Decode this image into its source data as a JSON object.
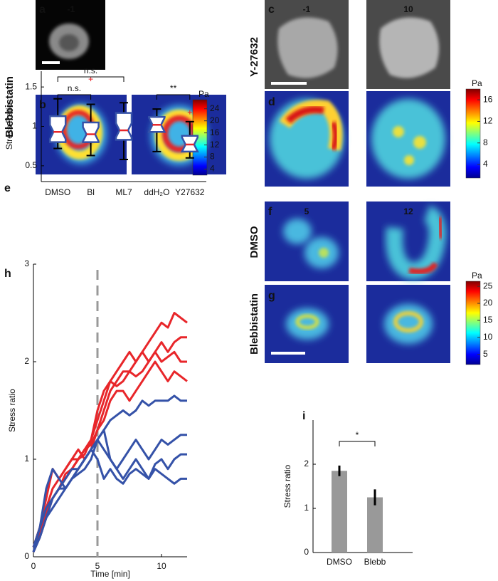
{
  "panel_labels": [
    "a",
    "b",
    "c",
    "d",
    "e",
    "f",
    "g",
    "h",
    "i"
  ],
  "image_labels": [
    "-1",
    "-1",
    "10",
    "5",
    "12"
  ],
  "row_labels": [
    "Blebbistatin",
    "Y-27632",
    "DMSO",
    "Blebbistatin"
  ],
  "colorbars": [
    {
      "unit": "Pa",
      "lim": [
        2,
        27
      ],
      "ticks": [
        24,
        20,
        16,
        12,
        8,
        4
      ]
    },
    {
      "unit": "Pa",
      "lim": [
        1.5,
        18
      ],
      "ticks": [
        16,
        12,
        8,
        4
      ]
    },
    {
      "unit": "Pa",
      "lim": [
        2,
        26.5
      ],
      "ticks": [
        25,
        20,
        15,
        10,
        5
      ]
    }
  ],
  "chart_data": [
    {
      "type": "box",
      "ylabel": "Stress Ratio",
      "categories": [
        "DMSO",
        "Bl",
        "ML7",
        "ddH₂O",
        "Y27632"
      ],
      "boxes": [
        {
          "whislo": 0.72,
          "q1": 0.8,
          "med": 0.93,
          "q3": 1.13,
          "whishi": 1.35,
          "fliers": []
        },
        {
          "whislo": 0.63,
          "q1": 0.8,
          "med": 0.9,
          "q3": 1.05,
          "whishi": 1.28,
          "fliers": [
            1.6
          ]
        },
        {
          "whislo": 0.58,
          "q1": 0.83,
          "med": 0.95,
          "q3": 1.17,
          "whishi": 1.3,
          "fliers": []
        },
        {
          "whislo": 0.68,
          "q1": 0.93,
          "med": 1.02,
          "q3": 1.12,
          "whishi": 1.22,
          "fliers": []
        },
        {
          "whislo": 0.6,
          "q1": 0.68,
          "med": 0.77,
          "q3": 0.88,
          "whishi": 1.06,
          "fliers": [
            1.18
          ]
        }
      ],
      "box_color": "#3552a8",
      "median_color": "#e8262a",
      "flier_color": "#e8262a",
      "ylim": [
        0.3,
        1.7
      ],
      "yticks": [
        0.5,
        1,
        1.5
      ],
      "annotations": [
        {
          "text": "n.s.",
          "categories": [
            "DMSO",
            "ML7"
          ]
        },
        {
          "text": "n.s.",
          "categories": [
            "DMSO",
            "Bl"
          ]
        },
        {
          "text": "**",
          "categories": [
            "ddH₂O",
            "Y27632"
          ]
        }
      ]
    },
    {
      "type": "line",
      "xlabel": "Time [min]",
      "ylabel": "Stress ratio",
      "x": [
        0,
        0.5,
        1,
        1.5,
        2,
        2.5,
        3,
        3.5,
        4,
        4.5,
        5,
        5.5,
        6,
        6.5,
        7,
        7.5,
        8,
        8.5,
        9,
        9.5,
        10,
        10.5,
        11,
        11.5,
        12
      ],
      "series": [
        {
          "color": "#e8262a",
          "values": [
            0.1,
            0.3,
            0.5,
            0.7,
            0.8,
            0.9,
            1.0,
            1.0,
            1.1,
            1.2,
            1.4,
            1.6,
            1.8,
            1.9,
            2.0,
            2.1,
            2.0,
            2.1,
            2.2,
            2.3,
            2.4,
            2.35,
            2.5,
            2.45,
            2.4
          ]
        },
        {
          "color": "#e8262a",
          "values": [
            0.1,
            0.3,
            0.6,
            0.9,
            0.8,
            0.9,
            1.0,
            1.1,
            1.0,
            1.1,
            1.3,
            1.5,
            1.7,
            1.8,
            1.9,
            1.9,
            2.0,
            2.1,
            2.0,
            2.1,
            2.2,
            2.1,
            2.2,
            2.25,
            2.25
          ]
        },
        {
          "color": "#e8262a",
          "values": [
            0.05,
            0.2,
            0.4,
            0.6,
            0.7,
            0.8,
            0.9,
            1.0,
            1.05,
            1.2,
            1.5,
            1.7,
            1.8,
            1.75,
            1.8,
            1.9,
            1.85,
            1.9,
            2.0,
            2.1,
            2.0,
            2.05,
            2.1,
            2.0,
            2.0
          ]
        },
        {
          "color": "#e8262a",
          "values": [
            0.05,
            0.25,
            0.45,
            0.6,
            0.7,
            0.85,
            0.9,
            1.0,
            1.1,
            1.15,
            1.3,
            1.4,
            1.6,
            1.7,
            1.7,
            1.6,
            1.7,
            1.8,
            1.9,
            2.0,
            1.9,
            1.8,
            1.9,
            1.85,
            1.8
          ]
        },
        {
          "color": "#3552a8",
          "values": [
            0.05,
            0.3,
            0.7,
            0.9,
            0.8,
            0.7,
            0.8,
            0.9,
            1.0,
            1.1,
            1.2,
            1.3,
            1.4,
            1.45,
            1.5,
            1.45,
            1.5,
            1.6,
            1.55,
            1.6,
            1.6,
            1.6,
            1.65,
            1.6,
            1.6
          ]
        },
        {
          "color": "#3552a8",
          "values": [
            0.1,
            0.3,
            0.5,
            0.6,
            0.7,
            0.8,
            0.9,
            0.9,
            1.0,
            1.1,
            1.2,
            1.1,
            1.0,
            0.9,
            1.0,
            1.1,
            1.2,
            1.1,
            1.0,
            1.1,
            1.2,
            1.15,
            1.2,
            1.25,
            1.25
          ]
        },
        {
          "color": "#3552a8",
          "values": [
            0.05,
            0.2,
            0.4,
            0.5,
            0.6,
            0.7,
            0.8,
            0.85,
            0.9,
            1.0,
            1.2,
            1.3,
            1.0,
            0.9,
            0.8,
            0.9,
            1.0,
            0.9,
            0.8,
            0.95,
            1.0,
            0.9,
            1.0,
            1.05,
            1.05
          ]
        },
        {
          "color": "#3552a8",
          "values": [
            0.05,
            0.2,
            0.4,
            0.6,
            0.7,
            0.7,
            0.8,
            0.9,
            1.0,
            1.1,
            1.0,
            0.8,
            0.9,
            0.8,
            0.75,
            0.85,
            0.9,
            0.85,
            0.8,
            0.9,
            0.85,
            0.8,
            0.75,
            0.8,
            0.8
          ]
        }
      ],
      "vline": 5,
      "vline_color": "#999999",
      "xlim": [
        0,
        12
      ],
      "xticks": [
        0,
        5,
        10
      ],
      "ylim": [
        0,
        3
      ],
      "yticks": [
        0,
        1,
        2,
        3
      ]
    },
    {
      "type": "bar",
      "ylabel": "Stress ratio",
      "categories": [
        "DMSO",
        "Blebb"
      ],
      "values": [
        1.85,
        1.25
      ],
      "errors": [
        0.12,
        0.18
      ],
      "color": "#999999",
      "error_color": "#000000",
      "ylim": [
        0,
        3
      ],
      "yticks": [
        0,
        1,
        2
      ],
      "annotations": [
        {
          "text": "*",
          "categories": [
            "DMSO",
            "Blebb"
          ]
        }
      ]
    }
  ]
}
